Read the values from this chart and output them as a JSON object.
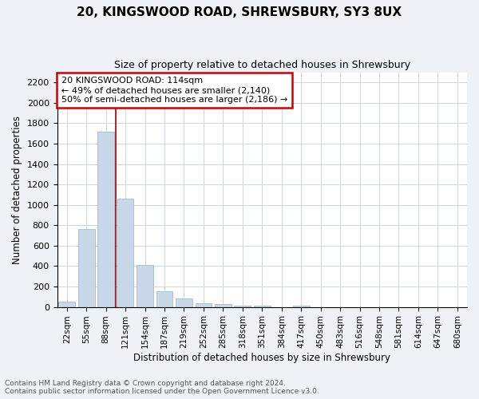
{
  "title": "20, KINGSWOOD ROAD, SHREWSBURY, SY3 8UX",
  "subtitle": "Size of property relative to detached houses in Shrewsbury",
  "xlabel": "Distribution of detached houses by size in Shrewsbury",
  "ylabel": "Number of detached properties",
  "bar_color": "#c8d8e8",
  "bar_edge_color": "#9ab0c8",
  "annotation_box_color": "#cc0000",
  "property_line_color": "#aa0000",
  "annotation_text": "20 KINGSWOOD ROAD: 114sqm\n← 49% of detached houses are smaller (2,140)\n50% of semi-detached houses are larger (2,186) →",
  "categories": [
    "22sqm",
    "55sqm",
    "88sqm",
    "121sqm",
    "154sqm",
    "187sqm",
    "219sqm",
    "252sqm",
    "285sqm",
    "318sqm",
    "351sqm",
    "384sqm",
    "417sqm",
    "450sqm",
    "483sqm",
    "516sqm",
    "548sqm",
    "581sqm",
    "614sqm",
    "647sqm",
    "680sqm"
  ],
  "values": [
    50,
    760,
    1720,
    1060,
    415,
    155,
    80,
    35,
    25,
    15,
    15,
    0,
    15,
    0,
    0,
    0,
    0,
    0,
    0,
    0,
    0
  ],
  "ylim": [
    0,
    2300
  ],
  "yticks": [
    0,
    200,
    400,
    600,
    800,
    1000,
    1200,
    1400,
    1600,
    1800,
    2000,
    2200
  ],
  "property_bin_index": 2,
  "footnote1": "Contains HM Land Registry data © Crown copyright and database right 2024.",
  "footnote2": "Contains public sector information licensed under the Open Government Licence v3.0.",
  "background_color": "#eef2f7",
  "plot_bg_color": "#ffffff",
  "grid_color": "#c8d0dc"
}
